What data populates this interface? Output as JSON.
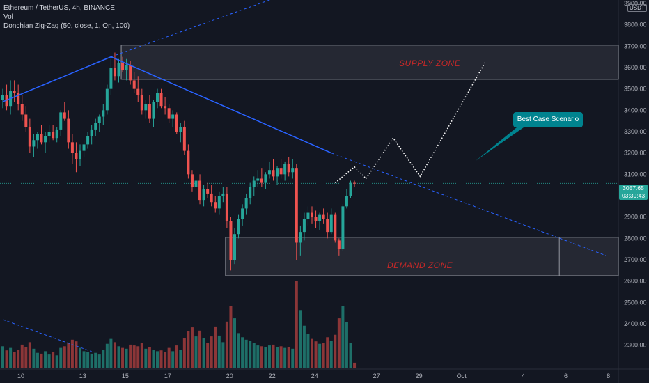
{
  "legend": {
    "symbol": "Ethereum / TetherUS, 4h, BINANCE",
    "volume": "Vol",
    "indicator": "Donchian Zig-Zag (50, close, 1, On, 100)"
  },
  "price_tag": {
    "price": "3057.65",
    "countdown": "03:39:43"
  },
  "currency": "USDT",
  "annotations": {
    "supply_zone": "SUPPLY ZONE",
    "demand_zone": "DEMAND ZONE",
    "callout": "Best Case Scenario"
  },
  "colors": {
    "background": "#131722",
    "up": "#26a69a",
    "down": "#ef5350",
    "vol_up": "#1e6f68",
    "vol_down": "#8c3638",
    "zigzag": "#2962ff",
    "zone_fill": "rgba(120,123,134,0.18)",
    "zone_border": "#9598a1",
    "zone_text": "#c62828",
    "callout": "#00838f"
  },
  "chart_data": {
    "type": "candlestick",
    "title": "Ethereum / TetherUS, 4h, BINANCE",
    "y_axis": {
      "range": [
        2250,
        3900
      ],
      "ticks": [
        2300,
        2400,
        2500,
        2600,
        2700,
        2800,
        2900,
        3000,
        3100,
        3200,
        3300,
        3400,
        3500,
        3600,
        3700,
        3800,
        3900
      ],
      "tick_labels": [
        "2300.00",
        "2400.00",
        "2500.00",
        "2600.00",
        "2700.00",
        "2800.00",
        "2900.00",
        "3000.00",
        "3100.00",
        "3200.00",
        "3300.00",
        "3400.00",
        "3500.00",
        "3600.00",
        "3700.00",
        "3800.00",
        "3900.00"
      ]
    },
    "x_axis": {
      "tick_labels": [
        "10",
        "13",
        "15",
        "17",
        "20",
        "22",
        "24",
        "27",
        "29",
        "Oct",
        "4",
        "6",
        "8"
      ],
      "tick_bar_index": [
        0,
        16,
        27,
        38,
        54,
        65,
        76,
        92,
        103,
        114,
        130,
        141,
        152
      ]
    },
    "last_price": 3057.65,
    "zones": [
      {
        "name": "SUPPLY ZONE",
        "low": 3545,
        "high": 3705,
        "start_bar": 31,
        "end_bar": null
      },
      {
        "name": "DEMAND ZONE",
        "low": 2625,
        "high": 2805,
        "start_bar": 58,
        "end_bar": 144
      }
    ],
    "zigzag": [
      [
        0,
        3440
      ],
      [
        28,
        3650
      ],
      [
        85,
        3200
      ]
    ],
    "trendlines": [
      {
        "style": "dashed",
        "from": [
          0,
          2420
        ],
        "to": [
          23,
          2270
        ]
      },
      {
        "style": "dashed",
        "from": [
          28,
          3650
        ],
        "to": [
          75,
          3955
        ]
      },
      {
        "style": "dashed",
        "from": [
          85,
          3200
        ],
        "to": [
          156,
          2720
        ]
      }
    ],
    "projection": [
      [
        86,
        3060
      ],
      [
        91,
        3135
      ],
      [
        94,
        3080
      ],
      [
        101,
        3270
      ],
      [
        108,
        3090
      ],
      [
        125,
        3630
      ]
    ],
    "points": [
      [
        3450,
        3500,
        3410,
        3470,
        2.6
      ],
      [
        3470,
        3520,
        3400,
        3420,
        2.1
      ],
      [
        3420,
        3540,
        3380,
        3490,
        2.4
      ],
      [
        3490,
        3540,
        3440,
        3480,
        1.9
      ],
      [
        3480,
        3520,
        3400,
        3430,
        2.2
      ],
      [
        3430,
        3470,
        3350,
        3380,
        2.8
      ],
      [
        3380,
        3420,
        3300,
        3320,
        2.5
      ],
      [
        3320,
        3360,
        3200,
        3230,
        3.1
      ],
      [
        3230,
        3290,
        3180,
        3260,
        2.3
      ],
      [
        3260,
        3300,
        3220,
        3290,
        1.8
      ],
      [
        3290,
        3330,
        3240,
        3250,
        1.7
      ],
      [
        3250,
        3300,
        3200,
        3280,
        2.0
      ],
      [
        3280,
        3330,
        3250,
        3300,
        1.6
      ],
      [
        3300,
        3330,
        3260,
        3270,
        1.9
      ],
      [
        3270,
        3320,
        3250,
        3310,
        1.5
      ],
      [
        3310,
        3400,
        3280,
        3390,
        2.4
      ],
      [
        3390,
        3440,
        3350,
        3360,
        2.6
      ],
      [
        3360,
        3400,
        3220,
        3250,
        3.0
      ],
      [
        3250,
        3290,
        3150,
        3200,
        3.4
      ],
      [
        3200,
        3250,
        3110,
        3170,
        3.2
      ],
      [
        3170,
        3240,
        3140,
        3210,
        2.4
      ],
      [
        3210,
        3260,
        3180,
        3240,
        2.0
      ],
      [
        3240,
        3300,
        3220,
        3280,
        1.9
      ],
      [
        3280,
        3330,
        3240,
        3310,
        1.7
      ],
      [
        3310,
        3360,
        3280,
        3340,
        1.8
      ],
      [
        3340,
        3380,
        3300,
        3370,
        1.6
      ],
      [
        3370,
        3430,
        3330,
        3400,
        2.2
      ],
      [
        3400,
        3520,
        3380,
        3500,
        2.9
      ],
      [
        3500,
        3640,
        3470,
        3600,
        3.5
      ],
      [
        3600,
        3670,
        3540,
        3560,
        3.1
      ],
      [
        3560,
        3640,
        3530,
        3620,
        2.6
      ],
      [
        3620,
        3650,
        3580,
        3590,
        2.4
      ],
      [
        3590,
        3640,
        3540,
        3610,
        2.3
      ],
      [
        3610,
        3630,
        3520,
        3540,
        2.8
      ],
      [
        3540,
        3580,
        3480,
        3500,
        2.7
      ],
      [
        3500,
        3560,
        3440,
        3470,
        2.6
      ],
      [
        3470,
        3500,
        3380,
        3400,
        3.0
      ],
      [
        3400,
        3450,
        3360,
        3430,
        2.3
      ],
      [
        3430,
        3470,
        3340,
        3360,
        2.5
      ],
      [
        3360,
        3450,
        3320,
        3440,
        2.2
      ],
      [
        3440,
        3500,
        3410,
        3480,
        2.0
      ],
      [
        3480,
        3500,
        3410,
        3420,
        2.1
      ],
      [
        3420,
        3460,
        3380,
        3410,
        1.9
      ],
      [
        3410,
        3430,
        3340,
        3360,
        2.4
      ],
      [
        3360,
        3400,
        3320,
        3380,
        2.0
      ],
      [
        3380,
        3390,
        3290,
        3300,
        2.7
      ],
      [
        3300,
        3340,
        3250,
        3320,
        2.2
      ],
      [
        3320,
        3350,
        3190,
        3210,
        3.6
      ],
      [
        3210,
        3240,
        3080,
        3100,
        4.4
      ],
      [
        3100,
        3120,
        3020,
        3040,
        4.9
      ],
      [
        3040,
        3090,
        3000,
        3070,
        3.8
      ],
      [
        3070,
        3100,
        2960,
        2980,
        4.5
      ],
      [
        2980,
        3050,
        2950,
        3030,
        3.6
      ],
      [
        3030,
        3060,
        2990,
        3010,
        3.0
      ],
      [
        3010,
        3050,
        2950,
        2970,
        3.8
      ],
      [
        2970,
        3000,
        2920,
        2940,
        5.0
      ],
      [
        2940,
        3020,
        2910,
        3000,
        3.9
      ],
      [
        3000,
        3040,
        2970,
        3010,
        3.1
      ],
      [
        3010,
        3040,
        2850,
        2880,
        5.6
      ],
      [
        2880,
        2900,
        2650,
        2700,
        7.5
      ],
      [
        2700,
        2850,
        2680,
        2820,
        6.0
      ],
      [
        2820,
        2910,
        2800,
        2890,
        4.2
      ],
      [
        2890,
        2960,
        2860,
        2940,
        3.7
      ],
      [
        2940,
        3010,
        2910,
        2990,
        3.4
      ],
      [
        2990,
        3060,
        2960,
        3040,
        3.3
      ],
      [
        3040,
        3090,
        3000,
        3070,
        3.0
      ],
      [
        3070,
        3120,
        3040,
        3080,
        2.7
      ],
      [
        3080,
        3130,
        3040,
        3060,
        2.6
      ],
      [
        3060,
        3110,
        3030,
        3100,
        2.5
      ],
      [
        3100,
        3160,
        3080,
        3120,
        2.7
      ],
      [
        3120,
        3170,
        3070,
        3090,
        2.8
      ],
      [
        3090,
        3140,
        3050,
        3130,
        2.5
      ],
      [
        3130,
        3170,
        3080,
        3100,
        2.6
      ],
      [
        3100,
        3160,
        3070,
        3150,
        2.4
      ],
      [
        3150,
        3180,
        3090,
        3110,
        2.5
      ],
      [
        3110,
        3170,
        3080,
        3130,
        2.3
      ],
      [
        3130,
        3150,
        2700,
        2780,
        10.5
      ],
      [
        2780,
        2860,
        2720,
        2830,
        7.0
      ],
      [
        2830,
        2920,
        2790,
        2890,
        5.1
      ],
      [
        2890,
        2950,
        2860,
        2920,
        4.1
      ],
      [
        2920,
        2950,
        2870,
        2900,
        3.5
      ],
      [
        2900,
        2930,
        2850,
        2880,
        3.2
      ],
      [
        2880,
        2920,
        2840,
        2910,
        2.9
      ],
      [
        2910,
        2940,
        2870,
        2890,
        3.0
      ],
      [
        2890,
        2920,
        2800,
        2830,
        3.7
      ],
      [
        2830,
        2940,
        2820,
        2910,
        3.3
      ],
      [
        2910,
        2920,
        2780,
        2790,
        4.0
      ],
      [
        2790,
        2800,
        2720,
        2750,
        6.0
      ],
      [
        2750,
        2960,
        2740,
        2950,
        7.5
      ],
      [
        2950,
        3030,
        2940,
        3000,
        5.5
      ],
      [
        3000,
        3070,
        2990,
        3060,
        3.0
      ],
      [
        3060,
        3070,
        3040,
        3057.65,
        0.6
      ]
    ]
  }
}
